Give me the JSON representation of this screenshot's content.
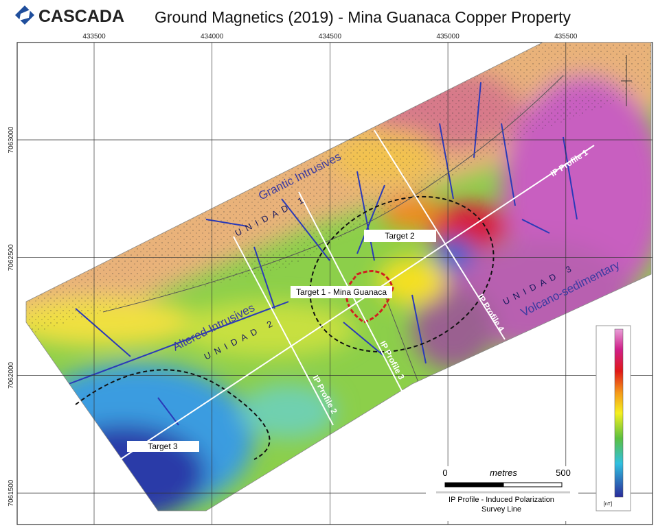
{
  "header": {
    "logo": "CASCADA",
    "title": "Ground Magnetics (2019) - Mina Guanaca Copper Property"
  },
  "grid": {
    "eastings": [
      433500,
      434000,
      434500,
      435000,
      435500
    ],
    "northings": [
      7063000,
      7062500,
      7062000,
      7061500
    ]
  },
  "geology": [
    {
      "name": "Grantic Intrusives",
      "unit": "UNIDAD 1"
    },
    {
      "name": "Altered Intrusives",
      "unit": "UNIDAD 2"
    },
    {
      "name": "Volcano-sedimentary",
      "unit": "UNIDAD 3"
    }
  ],
  "targets": [
    "Target 1 - Mina Guanaca",
    "Target 2",
    "Target 3"
  ],
  "profiles": [
    "IP Profile 1",
    "IP Profile 2",
    "IP Profile 3",
    "IP Profile 4"
  ],
  "scale": {
    "start": 0,
    "unit": "metres",
    "end": 500
  },
  "legend": {
    "line1": "IP Profile - Induced Polarization",
    "line2": "Survey Line"
  },
  "colorbar": {
    "unit": "[nT]"
  }
}
